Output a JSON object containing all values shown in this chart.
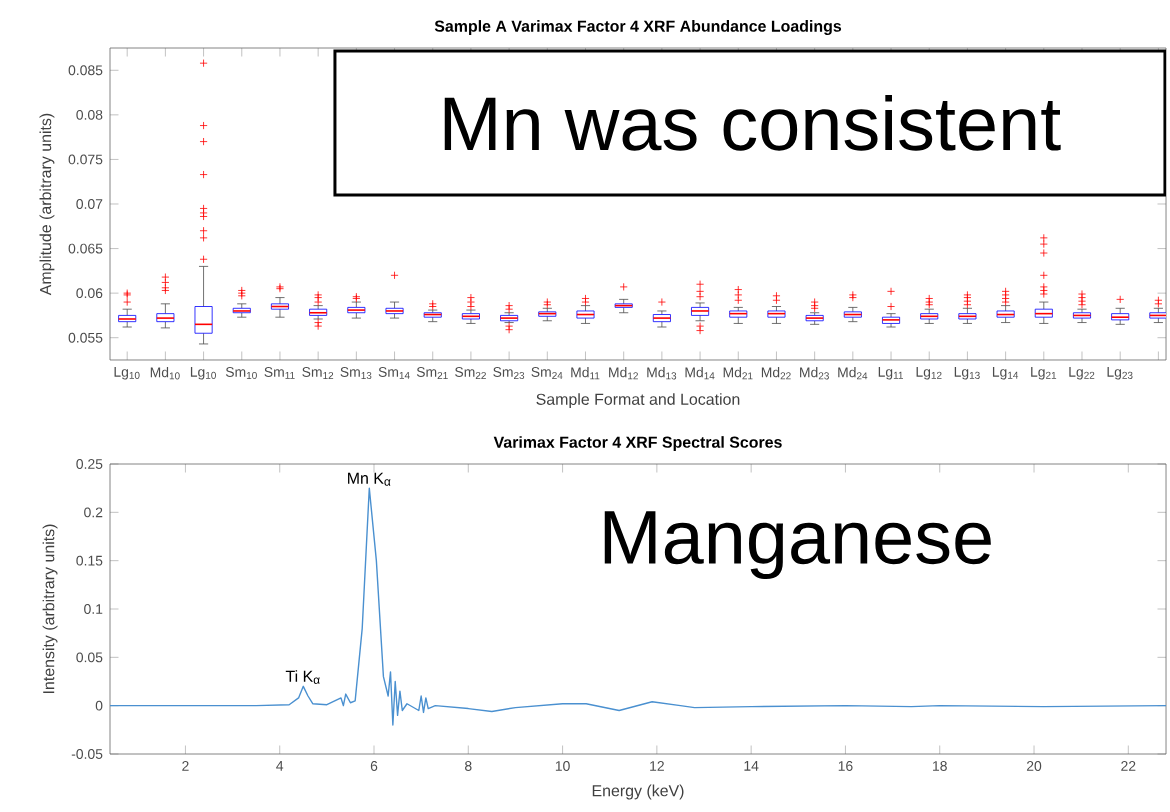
{
  "chart_data": [
    {
      "type": "box",
      "title": "Sample A Varimax Factor 4 XRF Abundance Loadings",
      "xlabel": "Sample Format and Location",
      "ylabel": "Amplitude (arbitrary units)",
      "categories": [
        "Lg$_{10}$",
        "Md$_{10}$",
        "Lg$_{10}$",
        "Sm$_{10}$",
        "Sm$_{11}$",
        "Sm$_{12}$",
        "Sm$_{13}$",
        "Sm$_{14}$",
        "Sm$_{21}$",
        "Sm$_{22}$",
        "Sm$_{23}$",
        "Sm$_{24}$",
        "Md$_{11}$",
        "Md$_{12}$",
        "Md$_{13}$",
        "Md$_{14}$",
        "Md$_{21}$",
        "Md$_{22}$",
        "Md$_{23}$",
        "Md$_{24}$",
        "Lg$_{11}$",
        "Lg$_{12}$",
        "Lg$_{13}$",
        "Lg$_{14}$",
        "Lg$_{21}$",
        "Lg$_{22}$",
        "Lg$_{23}$",
        null
      ],
      "color": "#0000ff",
      "marker": "cross",
      "ylim": [
        0.0525,
        0.0875
      ],
      "yticks": [
        0.055,
        0.06,
        0.065,
        0.07,
        0.075,
        0.08,
        0.085
      ],
      "boxes": [
        {
          "low": 0.0562,
          "q1": 0.0568,
          "median": 0.0571,
          "q3": 0.0575,
          "high": 0.0582,
          "outliers": [
            0.059,
            0.0598,
            0.06
          ]
        },
        {
          "low": 0.0561,
          "q1": 0.0568,
          "median": 0.0572,
          "q3": 0.0577,
          "high": 0.0588,
          "outliers": [
            0.0603,
            0.0606,
            0.0612,
            0.0618
          ]
        },
        {
          "low": 0.0543,
          "q1": 0.0555,
          "median": 0.0565,
          "q3": 0.0585,
          "high": 0.063,
          "outliers": [
            0.0638,
            0.0662,
            0.067,
            0.0686,
            0.069,
            0.0695,
            0.0733,
            0.077,
            0.0788,
            0.0858
          ]
        },
        {
          "low": 0.0573,
          "q1": 0.0578,
          "median": 0.058,
          "q3": 0.0583,
          "high": 0.0588,
          "outliers": [
            0.0597,
            0.06,
            0.0603
          ]
        },
        {
          "low": 0.0573,
          "q1": 0.0582,
          "median": 0.0585,
          "q3": 0.0588,
          "high": 0.0595,
          "outliers": [
            0.0605,
            0.0607
          ]
        },
        {
          "low": 0.0571,
          "q1": 0.0575,
          "median": 0.0578,
          "q3": 0.0582,
          "high": 0.0586,
          "outliers": [
            0.0563,
            0.0567,
            0.059,
            0.0595,
            0.0598
          ]
        },
        {
          "low": 0.0572,
          "q1": 0.0578,
          "median": 0.0581,
          "q3": 0.0584,
          "high": 0.059,
          "outliers": [
            0.0594,
            0.0596
          ]
        },
        {
          "low": 0.0572,
          "q1": 0.0577,
          "median": 0.058,
          "q3": 0.0583,
          "high": 0.059,
          "outliers": [
            0.062
          ]
        },
        {
          "low": 0.0568,
          "q1": 0.0573,
          "median": 0.0576,
          "q3": 0.0578,
          "high": 0.0581,
          "outliers": [
            0.0585,
            0.0588
          ]
        },
        {
          "low": 0.0566,
          "q1": 0.0571,
          "median": 0.0574,
          "q3": 0.0577,
          "high": 0.0581,
          "outliers": [
            0.0585,
            0.059,
            0.0595
          ]
        },
        {
          "low": 0.0567,
          "q1": 0.0569,
          "median": 0.0572,
          "q3": 0.0575,
          "high": 0.0578,
          "outliers": [
            0.0559,
            0.0563,
            0.0582,
            0.0586
          ]
        },
        {
          "low": 0.0569,
          "q1": 0.0574,
          "median": 0.0577,
          "q3": 0.0579,
          "high": 0.0583,
          "outliers": [
            0.0587,
            0.059
          ]
        },
        {
          "low": 0.0566,
          "q1": 0.0572,
          "median": 0.0576,
          "q3": 0.058,
          "high": 0.0586,
          "outliers": [
            0.059,
            0.0594
          ]
        },
        {
          "low": 0.0578,
          "q1": 0.0584,
          "median": 0.0586,
          "q3": 0.0588,
          "high": 0.0593,
          "outliers": [
            0.0607
          ]
        },
        {
          "low": 0.0562,
          "q1": 0.0568,
          "median": 0.0572,
          "q3": 0.0576,
          "high": 0.058,
          "outliers": [
            0.059
          ]
        },
        {
          "low": 0.0569,
          "q1": 0.0575,
          "median": 0.058,
          "q3": 0.0584,
          "high": 0.0589,
          "outliers": [
            0.0558,
            0.0563,
            0.0596,
            0.0602,
            0.061
          ]
        },
        {
          "low": 0.0566,
          "q1": 0.0573,
          "median": 0.0577,
          "q3": 0.058,
          "high": 0.0584,
          "outliers": [
            0.0592,
            0.0598,
            0.0604
          ]
        },
        {
          "low": 0.0566,
          "q1": 0.0573,
          "median": 0.0577,
          "q3": 0.058,
          "high": 0.0585,
          "outliers": [
            0.0592,
            0.0597
          ]
        },
        {
          "low": 0.0565,
          "q1": 0.0569,
          "median": 0.0572,
          "q3": 0.0575,
          "high": 0.0578,
          "outliers": [
            0.0583,
            0.0586,
            0.059
          ]
        },
        {
          "low": 0.0568,
          "q1": 0.0573,
          "median": 0.0576,
          "q3": 0.0579,
          "high": 0.0584,
          "outliers": [
            0.0595,
            0.0598
          ]
        },
        {
          "low": 0.0562,
          "q1": 0.0566,
          "median": 0.057,
          "q3": 0.0573,
          "high": 0.0577,
          "outliers": [
            0.0585,
            0.0602
          ]
        },
        {
          "low": 0.0566,
          "q1": 0.0571,
          "median": 0.0574,
          "q3": 0.0577,
          "high": 0.0582,
          "outliers": [
            0.0587,
            0.059,
            0.0594
          ]
        },
        {
          "low": 0.0566,
          "q1": 0.0571,
          "median": 0.0574,
          "q3": 0.0577,
          "high": 0.0583,
          "outliers": [
            0.0587,
            0.0591,
            0.0595,
            0.0598
          ]
        },
        {
          "low": 0.0567,
          "q1": 0.0573,
          "median": 0.0576,
          "q3": 0.058,
          "high": 0.0586,
          "outliers": [
            0.059,
            0.0594,
            0.0598,
            0.0602
          ]
        },
        {
          "low": 0.0566,
          "q1": 0.0573,
          "median": 0.0577,
          "q3": 0.0582,
          "high": 0.059,
          "outliers": [
            0.0599,
            0.0603,
            0.0607,
            0.062,
            0.0645,
            0.0655,
            0.0662
          ]
        },
        {
          "low": 0.0567,
          "q1": 0.0572,
          "median": 0.0575,
          "q3": 0.0578,
          "high": 0.0582,
          "outliers": [
            0.0587,
            0.0591,
            0.0595,
            0.0599
          ]
        },
        {
          "low": 0.0565,
          "q1": 0.057,
          "median": 0.0573,
          "q3": 0.0577,
          "high": 0.0583,
          "outliers": [
            0.0593
          ]
        },
        {
          "low": 0.0567,
          "q1": 0.0572,
          "median": 0.0575,
          "q3": 0.0578,
          "high": 0.0583,
          "outliers": [
            0.0588,
            0.0592
          ]
        }
      ],
      "annotations": [
        "Mn was consistent"
      ]
    },
    {
      "type": "line",
      "title": "Varimax Factor 4 XRF Spectral Scores",
      "xlabel": "Energy (keV)",
      "ylabel": "Intensity (arbitrary units)",
      "xlim": [
        0.4,
        22.8
      ],
      "ylim": [
        -0.05,
        0.25
      ],
      "xticks": [
        2,
        4,
        6,
        8,
        10,
        12,
        14,
        16,
        18,
        20,
        22
      ],
      "yticks": [
        -0.05,
        0,
        0.05,
        0.1,
        0.15,
        0.2,
        0.25
      ],
      "color": "#4a90d0",
      "x": [
        0.4,
        1.5,
        2.5,
        3.5,
        4.2,
        4.4,
        4.5,
        4.6,
        4.7,
        5.0,
        5.3,
        5.35,
        5.4,
        5.5,
        5.6,
        5.75,
        5.9,
        6.05,
        6.2,
        6.3,
        6.35,
        6.4,
        6.45,
        6.5,
        6.55,
        6.6,
        6.7,
        6.95,
        7.0,
        7.05,
        7.1,
        7.15,
        7.3,
        8.0,
        8.5,
        9.0,
        10.0,
        10.5,
        11.2,
        11.9,
        12.5,
        12.8,
        14,
        16,
        17.4,
        18,
        20.2,
        22.8
      ],
      "values": [
        0,
        0,
        0,
        0,
        0.001,
        0.008,
        0.02,
        0.01,
        0.002,
        0.001,
        0.008,
        0,
        0.012,
        0.003,
        0.005,
        0.08,
        0.225,
        0.15,
        0.03,
        0.01,
        0.035,
        -0.02,
        0.025,
        -0.01,
        0.015,
        -0.005,
        0.002,
        -0.005,
        0.01,
        -0.007,
        0.008,
        -0.003,
        0,
        -0.003,
        -0.006,
        -0.002,
        0.002,
        0.002,
        -0.005,
        0.004,
        0,
        -0.002,
        -0.001,
        0,
        -0.001,
        0,
        -0.001,
        0
      ],
      "annotations": [
        {
          "text": "Ti K$_{α}$",
          "x": 4.5,
          "y": 0.02
        },
        {
          "text": "Mn K$_{α}$",
          "x": 5.9,
          "y": 0.225
        },
        "Manganese"
      ]
    }
  ]
}
